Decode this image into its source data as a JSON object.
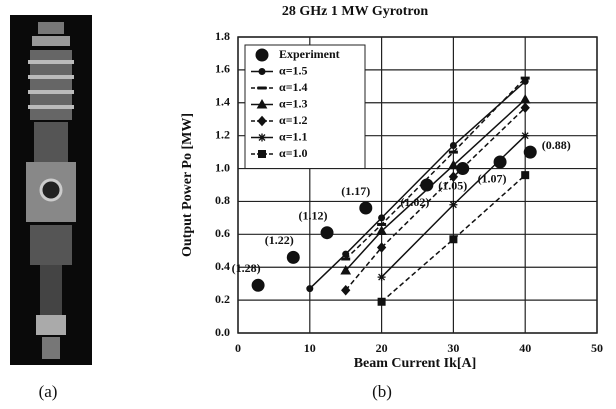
{
  "chart_data": {
    "type": "line",
    "title": "28 GHz 1 MW Gyrotron",
    "xlabel": "Beam Current Ik[A]",
    "ylabel": "Output Power Po [MW]",
    "xlim": [
      0,
      50
    ],
    "xticks": [
      0,
      10,
      20,
      30,
      40,
      50
    ],
    "ylim": [
      0,
      1.8
    ],
    "yticks": [
      {
        "value": 0,
        "label": "0.0"
      },
      0.2,
      0.4,
      0.6,
      0.8,
      {
        "value": 1,
        "label": "1.0"
      },
      1.2,
      1.4,
      1.6,
      1.8
    ],
    "grid": true,
    "legend": "upper left",
    "series": [
      {
        "name": "Experiment",
        "color": "#111",
        "marker": "circle",
        "line": false,
        "x": [
          2.8,
          7.7,
          12.4,
          17.8,
          26.3,
          31.3,
          36.5,
          40.7
        ],
        "values": [
          0.29,
          0.46,
          0.61,
          0.76,
          0.9,
          1.0,
          1.04,
          1.1
        ]
      },
      {
        "name": "α=1.5",
        "color": "#111",
        "marker": "dot",
        "line": true,
        "dash": false,
        "x": [
          10,
          15,
          20,
          30,
          40
        ],
        "values": [
          0.27,
          0.48,
          0.7,
          1.14,
          1.53
        ]
      },
      {
        "name": "α=1.4",
        "color": "#111",
        "marker": "dash",
        "line": true,
        "dash": true,
        "x": [
          15,
          20,
          30,
          40
        ],
        "values": [
          0.45,
          0.66,
          1.1,
          1.55
        ]
      },
      {
        "name": "α=1.3",
        "color": "#111",
        "marker": "triangle",
        "line": true,
        "dash": false,
        "x": [
          15,
          20,
          30,
          40
        ],
        "values": [
          0.38,
          0.62,
          1.02,
          1.42
        ]
      },
      {
        "name": "α=1.2",
        "color": "#111",
        "marker": "diamond",
        "line": true,
        "dash": true,
        "x": [
          15,
          20,
          30,
          40
        ],
        "values": [
          0.26,
          0.52,
          0.95,
          1.37
        ]
      },
      {
        "name": "α=1.1",
        "color": "#111",
        "marker": "star",
        "line": true,
        "dash": false,
        "x": [
          20,
          30,
          40
        ],
        "values": [
          0.34,
          0.78,
          1.2
        ]
      },
      {
        "name": "α=1.0",
        "color": "#111",
        "marker": "square",
        "line": true,
        "dash": true,
        "x": [
          20,
          30,
          40
        ],
        "values": [
          0.19,
          0.57,
          0.96
        ]
      }
    ],
    "annotations": [
      "(1.28)",
      "(1.22)",
      "(1.12)",
      "(1.17)",
      "(1.02)",
      "(1.05)",
      "(1.07)",
      "(0.88)"
    ]
  },
  "captions": [
    "(a)",
    "(b)"
  ]
}
